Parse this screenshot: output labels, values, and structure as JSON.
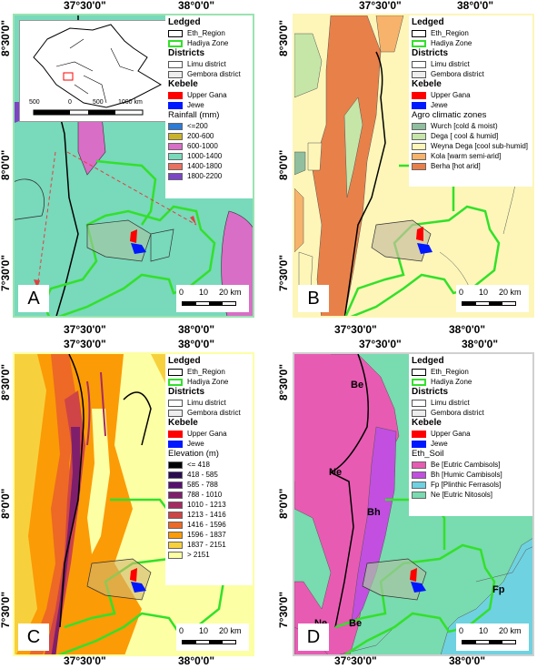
{
  "coords": {
    "lon_left": "37°30'0\"",
    "lon_right": "38°0'0\"",
    "lat_top": "8°30'0\"",
    "lat_mid": "8°0'0\"",
    "lat_bottom": "7°30'0\""
  },
  "legend": {
    "ledged": "Ledged",
    "eth_region": "Eth_Region",
    "hadiya_zone": "Hadiya Zone",
    "districts": "Districts",
    "limu": "Limu district",
    "gembora": "Gembora district",
    "kebele": "Kebele",
    "upper_gana": "Upper Gana",
    "jewe": "Jewe"
  },
  "panel_a": {
    "letter": "A",
    "rainfall_title": "Rainfall (mm)",
    "rainfall": [
      {
        "label": "<=200",
        "color": "#2c7bd6"
      },
      {
        "label": "200-600",
        "color": "#c9b22a"
      },
      {
        "label": "600-1000",
        "color": "#d86ec6"
      },
      {
        "label": "1000-1400",
        "color": "#78d9bb"
      },
      {
        "label": "1400-1800",
        "color": "#e8715f"
      },
      {
        "label": "1800-2200",
        "color": "#7b45c6"
      }
    ],
    "inset_scale": [
      "500",
      "0",
      "500",
      "1000 km"
    ]
  },
  "panel_b": {
    "letter": "B",
    "agro_title": "Agro climatic zones",
    "agro": [
      {
        "label": "Wurch [cold & moist)",
        "color": "#8fbf9f"
      },
      {
        "label": "Dega [ cool & humid]",
        "color": "#c6e6a8"
      },
      {
        "label": "Weyna Dega [cool sub-humid]",
        "color": "#fdf6b8"
      },
      {
        "label": "Kola [warm semi-arid]",
        "color": "#f7b36b"
      },
      {
        "label": "Berha [hot arid]",
        "color": "#e8804a"
      }
    ]
  },
  "panel_c": {
    "letter": "C",
    "elev_title": "Elevation (m)",
    "elevation": [
      {
        "label": "<= 418",
        "color": "#000004"
      },
      {
        "label": "418 - 585",
        "color": "#2a0b4f"
      },
      {
        "label": "585 - 788",
        "color": "#57106e"
      },
      {
        "label": "788 - 1010",
        "color": "#7f1f6c"
      },
      {
        "label": "1010 - 1213",
        "color": "#a52c60"
      },
      {
        "label": "1213 - 1416",
        "color": "#cf4446"
      },
      {
        "label": "1416 - 1596",
        "color": "#ed6925"
      },
      {
        "label": "1596 - 1837",
        "color": "#fb9b06"
      },
      {
        "label": "1837 - 2151",
        "color": "#f7d13d"
      },
      {
        "label": "> 2151",
        "color": "#fcffa4"
      }
    ]
  },
  "panel_d": {
    "letter": "D",
    "soil_title": "Eth_Soil",
    "soil": [
      {
        "label": "Be [Eutric Cambisols]",
        "color": "#e85bb3"
      },
      {
        "label": "Bh [Humic Cambisols]",
        "color": "#c24fe0"
      },
      {
        "label": "Fp [Plinthic Ferrasols]",
        "color": "#6fd2e0"
      },
      {
        "label": "Ne [Eutric Nitosols]",
        "color": "#79dbb0"
      }
    ],
    "map_labels": {
      "be1": "Be",
      "ne1": "Ne",
      "bh": "Bh",
      "fp": "Fp",
      "ne2": "Ne",
      "be2": "Be"
    }
  },
  "scale": {
    "l0": "0",
    "l10": "10",
    "l20": "20 km"
  }
}
